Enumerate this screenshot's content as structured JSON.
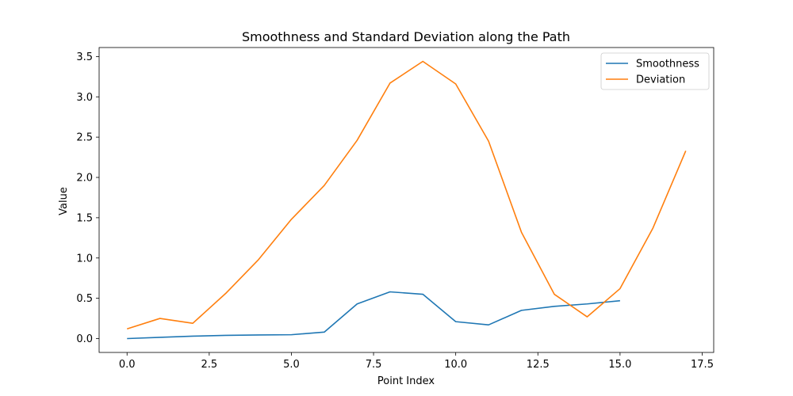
{
  "chart_data": {
    "type": "line",
    "title": "Smoothness and Standard Deviation along the Path",
    "xlabel": "Point Index",
    "ylabel": "Value",
    "xlim": [
      -0.85,
      17.85
    ],
    "ylim": [
      -0.172,
      3.612
    ],
    "xticks": [
      0.0,
      2.5,
      5.0,
      7.5,
      10.0,
      12.5,
      15.0,
      17.5
    ],
    "xtick_labels": [
      "0.0",
      "2.5",
      "5.0",
      "7.5",
      "10.0",
      "12.5",
      "15.0",
      "17.5"
    ],
    "yticks": [
      0.0,
      0.5,
      1.0,
      1.5,
      2.0,
      2.5,
      3.0,
      3.5
    ],
    "ytick_labels": [
      "0.0",
      "0.5",
      "1.0",
      "1.5",
      "2.0",
      "2.5",
      "3.0",
      "3.5"
    ],
    "grid": false,
    "legend_position": "top-right",
    "series": [
      {
        "name": "Smoothness",
        "color": "#1f77b4",
        "x": [
          0,
          1,
          2,
          3,
          4,
          5,
          6,
          7,
          8,
          9,
          10,
          11,
          12,
          13,
          14,
          15
        ],
        "values": [
          0.0,
          0.015,
          0.03,
          0.04,
          0.045,
          0.048,
          0.08,
          0.43,
          0.58,
          0.55,
          0.21,
          0.17,
          0.35,
          0.4,
          0.43,
          0.47
        ]
      },
      {
        "name": "Deviation",
        "color": "#ff7f0e",
        "x": [
          0,
          1,
          2,
          3,
          4,
          5,
          6,
          7,
          8,
          9,
          10,
          11,
          12,
          13,
          14,
          15,
          16,
          17
        ],
        "values": [
          0.12,
          0.25,
          0.19,
          0.56,
          0.98,
          1.48,
          1.9,
          2.46,
          3.17,
          3.44,
          3.16,
          2.45,
          1.32,
          0.55,
          0.27,
          0.62,
          1.37,
          2.33
        ]
      }
    ]
  }
}
